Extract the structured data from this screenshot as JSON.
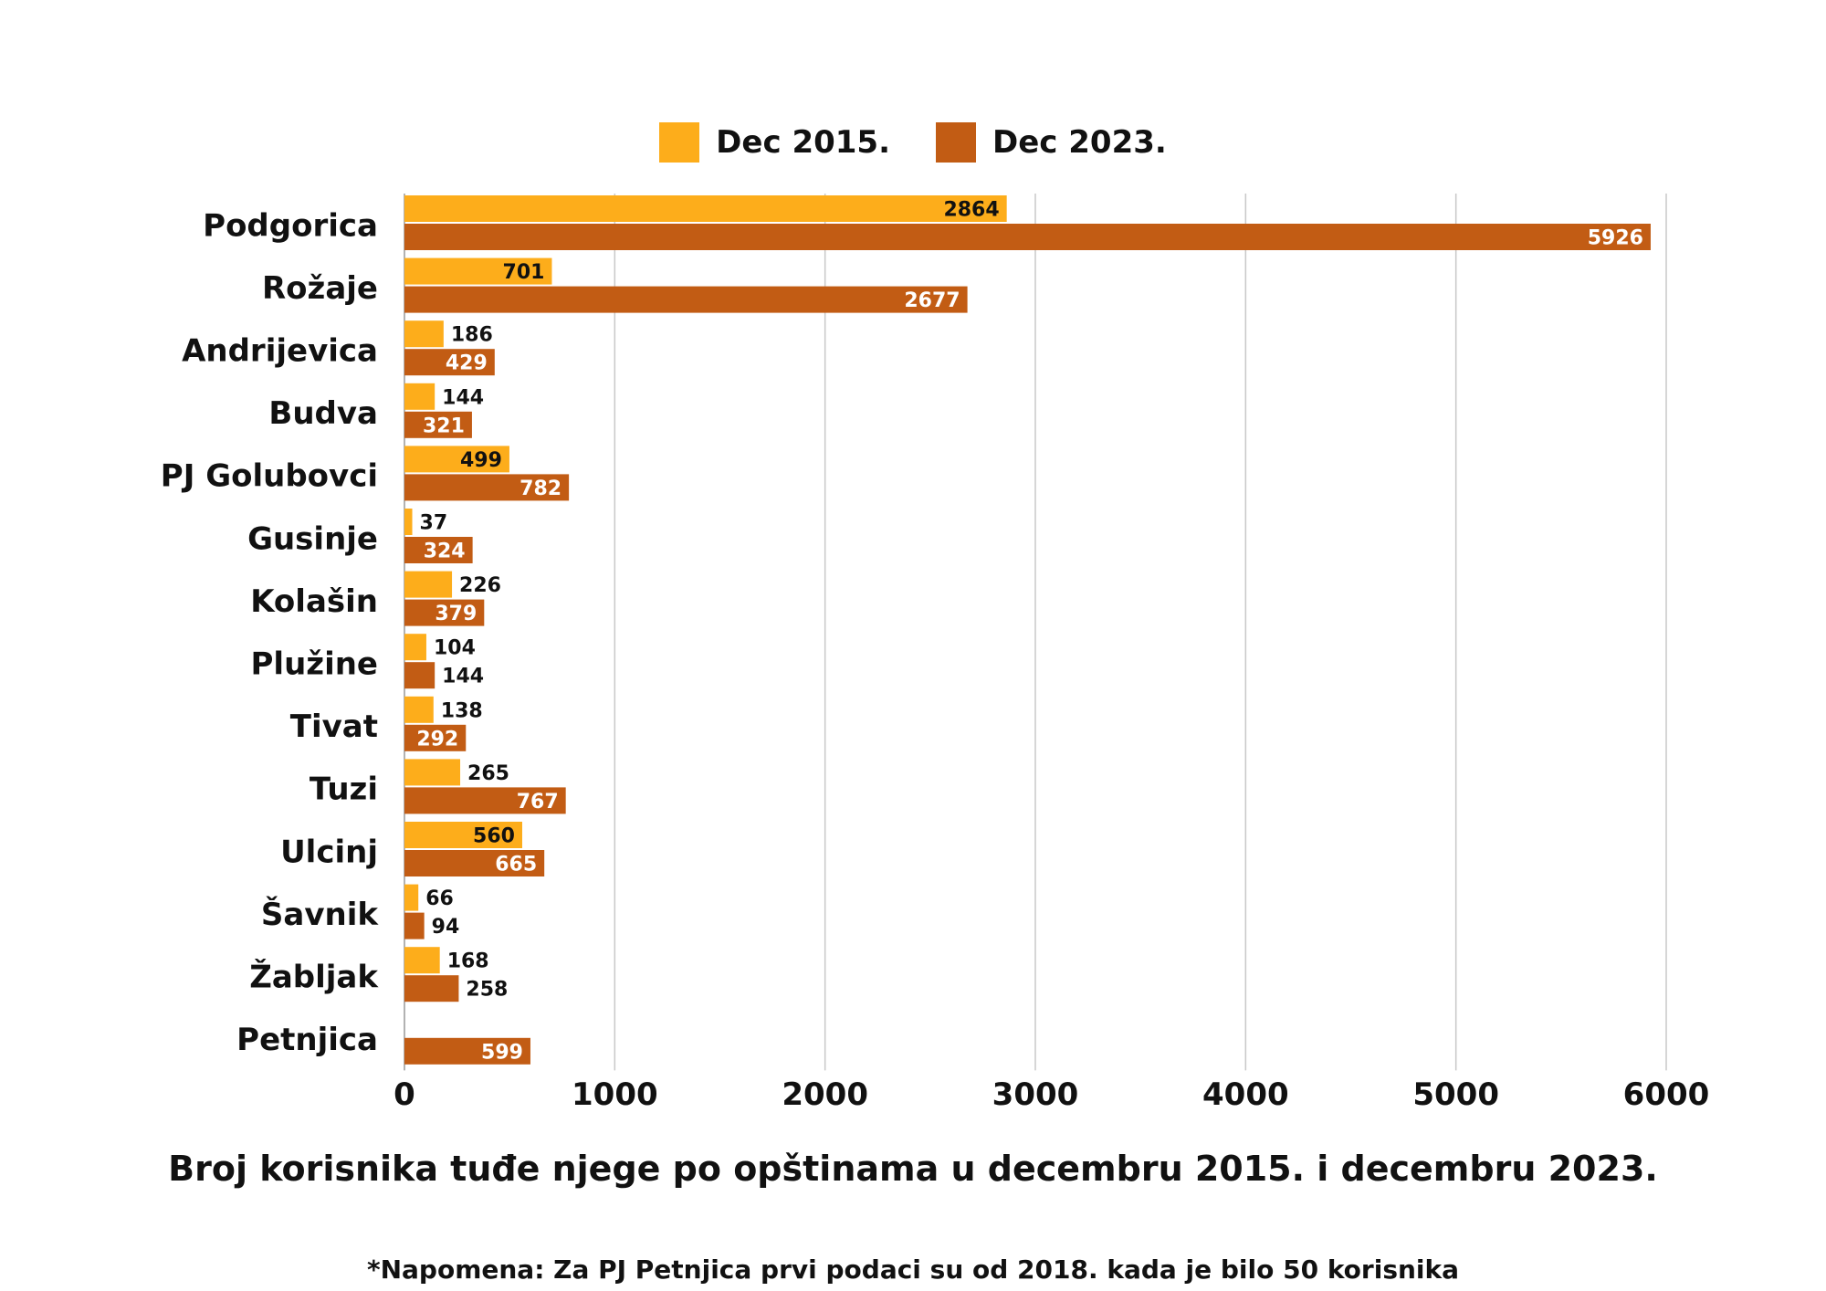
{
  "chart_data": {
    "type": "bar",
    "orientation": "horizontal",
    "title": "Broj korisnika tuđe njege po opštinama u decembru 2015. i decembru 2023.",
    "note": "*Napomena: Za PJ Petnjica prvi podaci su od 2018. kada je bilo 50 korisnika",
    "categories": [
      "Podgorica",
      "Rožaje",
      "Andrijevica",
      "Budva",
      "PJ Golubovci",
      "Gusinje",
      "Kolašin",
      "Plužine",
      "Tivat",
      "Tuzi",
      "Ulcinj",
      "Šavnik",
      "Žabljak",
      "Petnjica"
    ],
    "series": [
      {
        "name": "Dec 2015.",
        "color": "#FDAD1B",
        "values": [
          2864,
          701,
          186,
          144,
          499,
          37,
          226,
          104,
          138,
          265,
          560,
          66,
          168,
          null
        ]
      },
      {
        "name": "Dec 2023.",
        "color": "#C25C14",
        "values": [
          5926,
          2677,
          429,
          321,
          782,
          324,
          379,
          144,
          292,
          767,
          665,
          94,
          258,
          599
        ]
      }
    ],
    "xlim": [
      0,
      6000
    ],
    "xticks": [
      "0",
      "1000",
      "2000",
      "3000",
      "4000",
      "5000",
      "6000"
    ],
    "grid": true,
    "legend": "top-center",
    "data_labels": true
  }
}
